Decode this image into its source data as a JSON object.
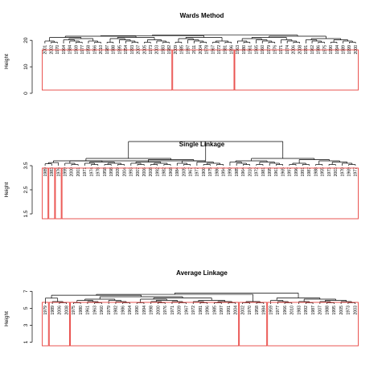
{
  "chart_data": [
    {
      "type": "dendrogram",
      "title": "Wards Method",
      "ylabel": "Height",
      "yticks": [
        0,
        10,
        20
      ],
      "ylim": [
        0,
        24
      ],
      "root_height": 22,
      "leaves": [
        "2001",
        "2002",
        "1970",
        "1964",
        "1984",
        "1969",
        "1977",
        "1958",
        "1966",
        "2010",
        "1987",
        "1988",
        "1995",
        "1954",
        "1993",
        "2007",
        "2005",
        "1973",
        "2003",
        "1983",
        "1982",
        "2009",
        "1985",
        "1997",
        "2011",
        "2004",
        "1978",
        "1967",
        "1972",
        "1981",
        "1996",
        "1963",
        "1980",
        "1961",
        "1965",
        "1960",
        "1979",
        "1976",
        "1971",
        "1974",
        "2006",
        "2008",
        "1991",
        "1962",
        "1986",
        "1975",
        "1990",
        "1994",
        "1989",
        "1999",
        "2000"
      ],
      "clusters": [
        {
          "size": 21,
          "height": 7.5
        },
        {
          "size": 10,
          "height": 8
        },
        {
          "size": 20,
          "height": 10
        }
      ]
    },
    {
      "type": "dendrogram",
      "title": "Single Linkage",
      "ylabel": "Height",
      "yticks": [
        1.5,
        2.5,
        3.5
      ],
      "ylim": [
        1.2,
        3.8
      ],
      "root_height": 3.7,
      "leaves": [
        "1989",
        "1983",
        "1976",
        "1999",
        "2000",
        "2001",
        "1971",
        "1974",
        "1978",
        "1958",
        "1998",
        "2009",
        "2004",
        "1993",
        "2007",
        "2006",
        "2008",
        "1992",
        "1982",
        "1968",
        "1984",
        "2005",
        "1967",
        "1977",
        "1900",
        "1975",
        "1986",
        "1994",
        "1990",
        "1985",
        "1964",
        "2010",
        "1972",
        "1981",
        "1995",
        "1961",
        "1965",
        "1997",
        "1996",
        "1991",
        "1987",
        "1988",
        "1955",
        "1973",
        "2003",
        "1970",
        "1969",
        "1977"
      ],
      "clusters": [
        {
          "size": 1,
          "height": 3.5
        },
        {
          "size": 1,
          "height": 3.45
        },
        {
          "size": 1,
          "height": 3.4
        },
        {
          "size": 45,
          "height": 3.3
        }
      ]
    },
    {
      "type": "dendrogram",
      "title": "Average Linkage",
      "ylabel": "Height",
      "yticks": [
        1,
        3,
        5,
        7
      ],
      "ylim": [
        0,
        7.5
      ],
      "root_height": 6.8,
      "leaves": [
        "1979",
        "1989",
        "2006",
        "2008",
        "1975",
        "1980",
        "1961",
        "1963",
        "1960",
        "1979",
        "1982",
        "1986",
        "1964",
        "1990",
        "1994",
        "1998",
        "2000",
        "1976",
        "1971",
        "2009",
        "1967",
        "1972",
        "1981",
        "1996",
        "1985",
        "1997",
        "1991",
        "2004",
        "2002",
        "1970",
        "1958",
        "1984",
        "1959",
        "1977",
        "1966",
        "2010",
        "1983",
        "1992",
        "1987",
        "2007",
        "1988",
        "1995",
        "2005",
        "1973",
        "2003"
      ],
      "clusters": [
        {
          "size": 1,
          "height": 6.5
        },
        {
          "size": 3,
          "height": 4.6
        },
        {
          "size": 24,
          "height": 4.8
        },
        {
          "size": 4,
          "height": 4.7
        },
        {
          "size": 13,
          "height": 5.4
        }
      ]
    }
  ]
}
